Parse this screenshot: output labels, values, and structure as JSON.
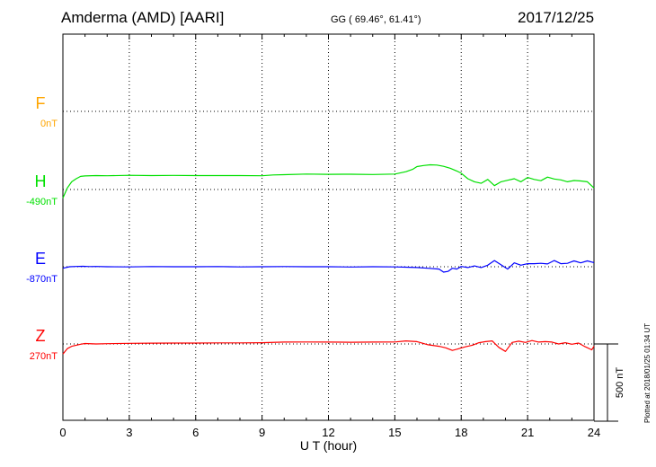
{
  "header": {
    "station": "Amderma (AMD)  [AARI]",
    "coords": "GG ( 69.46°,  61.41°)",
    "date": "2017/12/25"
  },
  "side_note": "Plotted at 2018/01/25 01:34 UT",
  "chart_data": {
    "type": "line",
    "xlabel": "U T (hour)",
    "xlim": [
      0,
      24
    ],
    "xticks": [
      "0",
      "3",
      "6",
      "9",
      "12",
      "15",
      "18",
      "21",
      "24"
    ],
    "scale_bar": {
      "label": "500 nT",
      "value_nT": 500
    },
    "colors": {
      "F": "#ffa500",
      "H": "#00e000",
      "E": "#0000ff",
      "Z": "#ff0000"
    },
    "series": [
      {
        "name": "F",
        "baseline": "0nT",
        "color": "#ffa500",
        "x": [],
        "y": []
      },
      {
        "name": "H",
        "baseline": "-490nT",
        "color": "#00e000",
        "x": [
          0,
          0.2,
          0.4,
          0.6,
          0.8,
          1.0,
          1.5,
          2,
          3,
          4,
          5,
          6,
          7,
          8,
          9,
          9.5,
          10,
          11,
          12,
          13,
          14,
          15,
          15.5,
          15.8,
          16.0,
          16.3,
          16.6,
          16.9,
          17.2,
          17.5,
          17.8,
          18.0,
          18.3,
          18.6,
          18.9,
          19.2,
          19.5,
          19.8,
          20.1,
          20.4,
          20.7,
          21.0,
          21.3,
          21.6,
          21.9,
          22.2,
          22.5,
          22.8,
          23.1,
          23.4,
          23.7,
          24.0
        ],
        "y": [
          -545,
          -480,
          -440,
          -420,
          -405,
          -402,
          -400,
          -401,
          -398,
          -400,
          -399,
          -400,
          -400,
          -400,
          -401,
          -396,
          -394,
          -390,
          -392,
          -391,
          -393,
          -390,
          -375,
          -360,
          -342,
          -335,
          -330,
          -332,
          -340,
          -352,
          -370,
          -385,
          -420,
          -440,
          -450,
          -425,
          -465,
          -440,
          -430,
          -420,
          -440,
          -412,
          -425,
          -433,
          -410,
          -422,
          -428,
          -440,
          -432,
          -435,
          -440,
          -480
        ]
      },
      {
        "name": "E",
        "baseline": "-870nT",
        "color": "#0000ff",
        "x": [
          0,
          0.3,
          0.6,
          0.9,
          1.2,
          1.5,
          2,
          3,
          4,
          5,
          6,
          7,
          8,
          9,
          10,
          11,
          12,
          13,
          14,
          15,
          15.5,
          16,
          16.5,
          17.0,
          17.2,
          17.4,
          17.6,
          17.8,
          18.0,
          18.3,
          18.6,
          18.9,
          19.2,
          19.5,
          19.8,
          20.1,
          20.4,
          20.7,
          21.0,
          21.3,
          21.6,
          21.9,
          22.2,
          22.5,
          22.8,
          23.1,
          23.4,
          23.7,
          24.0
        ],
        "y": [
          -880,
          -870,
          -868,
          -867,
          -869,
          -868,
          -870,
          -871,
          -869,
          -870,
          -870,
          -869,
          -871,
          -870,
          -869,
          -870,
          -870,
          -872,
          -870,
          -871,
          -873,
          -875,
          -880,
          -885,
          -905,
          -900,
          -880,
          -885,
          -868,
          -875,
          -865,
          -875,
          -860,
          -830,
          -858,
          -885,
          -845,
          -860,
          -850,
          -850,
          -848,
          -852,
          -830,
          -850,
          -848,
          -832,
          -845,
          -832,
          -843
        ]
      },
      {
        "name": "Z",
        "baseline": "270nT",
        "color": "#ff0000",
        "x": [
          0,
          0.2,
          0.4,
          0.6,
          0.8,
          1.0,
          1.5,
          2,
          3,
          4,
          5,
          6,
          7,
          8,
          9,
          10,
          11,
          12,
          13,
          14,
          15,
          15.5,
          16.0,
          16.5,
          17.0,
          17.3,
          17.6,
          17.9,
          18.2,
          18.5,
          18.8,
          19.1,
          19.4,
          19.7,
          20.0,
          20.3,
          20.6,
          20.9,
          21.2,
          21.5,
          21.8,
          22.1,
          22.4,
          22.7,
          23.0,
          23.3,
          23.6,
          23.9,
          24.0
        ],
        "y": [
          205,
          240,
          255,
          262,
          268,
          273,
          270,
          272,
          274,
          275,
          276,
          276,
          277,
          277,
          278,
          282,
          283,
          282,
          281,
          282,
          283,
          290,
          285,
          265,
          255,
          245,
          228,
          240,
          252,
          262,
          278,
          285,
          290,
          248,
          222,
          280,
          288,
          280,
          292,
          282,
          285,
          282,
          270,
          278,
          268,
          276,
          252,
          232,
          255
        ]
      }
    ]
  }
}
